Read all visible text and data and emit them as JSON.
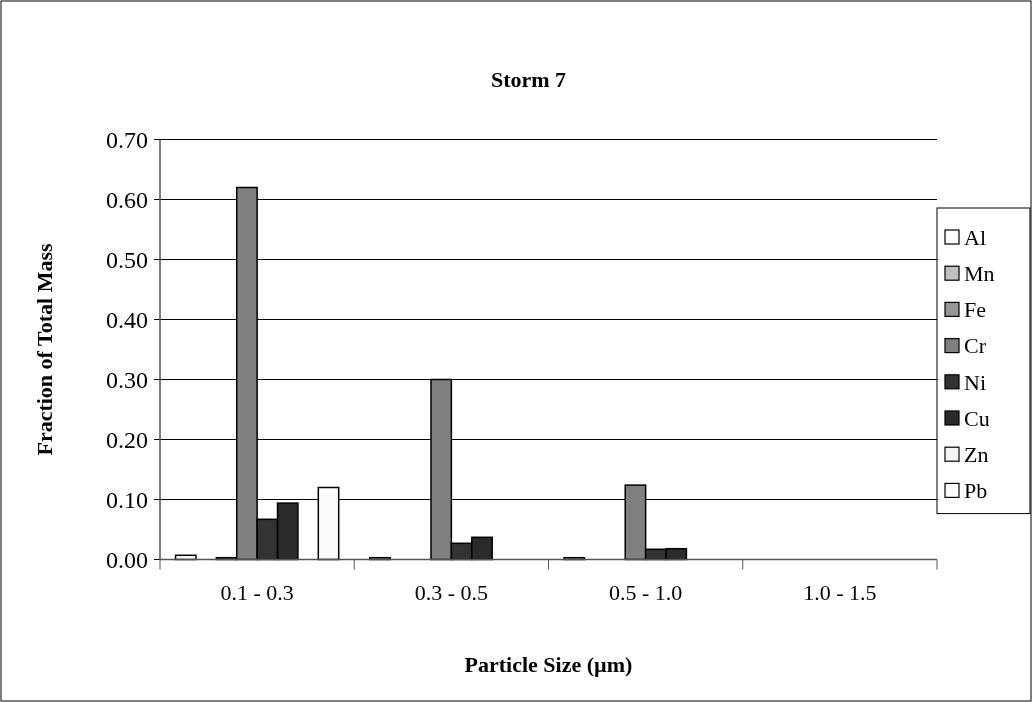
{
  "chart_data": {
    "type": "bar",
    "title": "Storm 7",
    "xlabel": "Particle Size (µm)",
    "ylabel": "Fraction of Total Mass",
    "categories": [
      "0.1 - 0.3",
      "0.3 - 0.5",
      "0.5 - 1.0",
      "1.0 - 1.5"
    ],
    "series": [
      {
        "name": "Al",
        "color": "#ffffff",
        "values": [
          0.007,
          0.003,
          0.003,
          0
        ]
      },
      {
        "name": "Mn",
        "color": "#c0c0c0",
        "values": [
          0,
          0,
          0,
          0
        ]
      },
      {
        "name": "Fe",
        "color": "#969696",
        "values": [
          0.003,
          0,
          0,
          0
        ]
      },
      {
        "name": "Cr",
        "color": "#808080",
        "values": [
          0.62,
          0.3,
          0.124,
          0
        ]
      },
      {
        "name": "Ni",
        "color": "#333333",
        "values": [
          0.067,
          0.027,
          0.017,
          0
        ]
      },
      {
        "name": "Cu",
        "color": "#2a2a2a",
        "values": [
          0.094,
          0.037,
          0.018,
          0
        ]
      },
      {
        "name": "Zn",
        "color": "#f4f4f4",
        "values": [
          0,
          0,
          0,
          0
        ]
      },
      {
        "name": "Pb",
        "color": "#fafafa",
        "values": [
          0.12,
          0,
          0,
          0
        ]
      }
    ],
    "ylim": [
      0,
      0.7
    ],
    "yticks": [
      {
        "value": 0,
        "label": "0.00"
      },
      {
        "value": 0.1,
        "label": "0.10"
      },
      {
        "value": 0.2,
        "label": "0.20"
      },
      {
        "value": 0.3,
        "label": "0.30"
      },
      {
        "value": 0.4,
        "label": "0.40"
      },
      {
        "value": 0.5,
        "label": "0.50"
      },
      {
        "value": 0.6,
        "label": "0.60"
      },
      {
        "value": 0.7,
        "label": "0.70"
      }
    ],
    "grid": "y",
    "legend": "right"
  }
}
